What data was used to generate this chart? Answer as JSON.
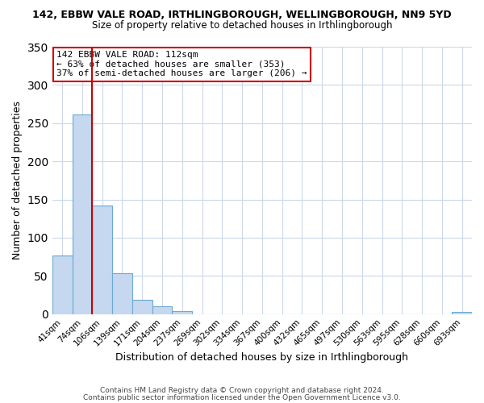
{
  "title": "142, EBBW VALE ROAD, IRTHLINGBOROUGH, WELLINGBOROUGH, NN9 5YD",
  "subtitle": "Size of property relative to detached houses in Irthlingborough",
  "xlabel": "Distribution of detached houses by size in Irthlingborough",
  "ylabel": "Number of detached properties",
  "bar_labels": [
    "41sqm",
    "74sqm",
    "106sqm",
    "139sqm",
    "171sqm",
    "204sqm",
    "237sqm",
    "269sqm",
    "302sqm",
    "334sqm",
    "367sqm",
    "400sqm",
    "432sqm",
    "465sqm",
    "497sqm",
    "530sqm",
    "563sqm",
    "595sqm",
    "628sqm",
    "660sqm",
    "693sqm"
  ],
  "bar_values": [
    77,
    261,
    142,
    54,
    19,
    10,
    4,
    0,
    0,
    0,
    0,
    0,
    0,
    0,
    0,
    0,
    0,
    0,
    0,
    0,
    3
  ],
  "bar_color": "#c5d8f0",
  "bar_edge_color": "#6aaad4",
  "ylim": [
    0,
    350
  ],
  "yticks": [
    0,
    50,
    100,
    150,
    200,
    250,
    300,
    350
  ],
  "vline_color": "#cc0000",
  "annotation_title": "142 EBBW VALE ROAD: 112sqm",
  "annotation_line1": "← 63% of detached houses are smaller (353)",
  "annotation_line2": "37% of semi-detached houses are larger (206) →",
  "annotation_box_color": "#ffffff",
  "annotation_box_edge": "#cc0000",
  "footer1": "Contains HM Land Registry data © Crown copyright and database right 2024.",
  "footer2": "Contains public sector information licensed under the Open Government Licence v3.0.",
  "background_color": "#ffffff",
  "grid_color": "#ccd8ea"
}
